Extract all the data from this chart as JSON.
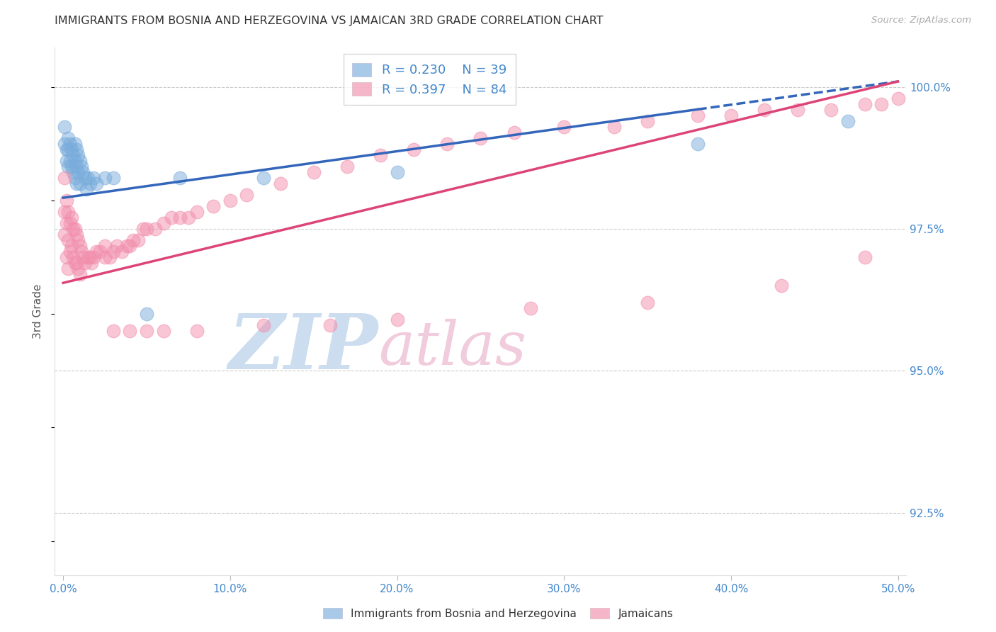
{
  "title": "IMMIGRANTS FROM BOSNIA AND HERZEGOVINA VS JAMAICAN 3RD GRADE CORRELATION CHART",
  "source": "Source: ZipAtlas.com",
  "ylabel": "3rd Grade",
  "xlim_min": -0.005,
  "xlim_max": 0.505,
  "ylim_min": 0.914,
  "ylim_max": 1.007,
  "xtick_vals": [
    0.0,
    0.1,
    0.2,
    0.3,
    0.4,
    0.5
  ],
  "xticklabels": [
    "0.0%",
    "10.0%",
    "20.0%",
    "30.0%",
    "40.0%",
    "50.0%"
  ],
  "ytick_vals": [
    0.925,
    0.95,
    0.975,
    1.0
  ],
  "yticklabels": [
    "92.5%",
    "95.0%",
    "97.5%",
    "100.0%"
  ],
  "blue_R": 0.23,
  "blue_N": 39,
  "pink_R": 0.397,
  "pink_N": 84,
  "blue_scatter_color": "#7AADDC",
  "pink_scatter_color": "#F28FAD",
  "blue_line_color": "#3366BB",
  "pink_line_color": "#DD4477",
  "blue_label": "Immigrants from Bosnia and Herzegovina",
  "pink_label": "Jamaicans",
  "axis_label_color": "#4488CC",
  "grid_color": "#CCCCCC",
  "blue_x": [
    0.001,
    0.001,
    0.002,
    0.002,
    0.003,
    0.003,
    0.003,
    0.004,
    0.004,
    0.005,
    0.005,
    0.006,
    0.006,
    0.007,
    0.007,
    0.007,
    0.008,
    0.008,
    0.008,
    0.009,
    0.009,
    0.01,
    0.01,
    0.011,
    0.012,
    0.013,
    0.014,
    0.015,
    0.016,
    0.018,
    0.02,
    0.025,
    0.03,
    0.05,
    0.07,
    0.12,
    0.2,
    0.38,
    0.47
  ],
  "blue_y": [
    0.993,
    0.99,
    0.989,
    0.987,
    0.991,
    0.989,
    0.986,
    0.99,
    0.987,
    0.989,
    0.986,
    0.988,
    0.985,
    0.99,
    0.987,
    0.984,
    0.989,
    0.986,
    0.983,
    0.988,
    0.985,
    0.987,
    0.983,
    0.986,
    0.985,
    0.984,
    0.982,
    0.984,
    0.983,
    0.984,
    0.983,
    0.984,
    0.984,
    0.96,
    0.984,
    0.984,
    0.985,
    0.99,
    0.994
  ],
  "pink_x": [
    0.001,
    0.001,
    0.001,
    0.002,
    0.002,
    0.002,
    0.003,
    0.003,
    0.003,
    0.004,
    0.004,
    0.005,
    0.005,
    0.006,
    0.006,
    0.007,
    0.007,
    0.008,
    0.008,
    0.009,
    0.009,
    0.01,
    0.01,
    0.011,
    0.012,
    0.013,
    0.015,
    0.016,
    0.017,
    0.018,
    0.02,
    0.022,
    0.025,
    0.025,
    0.028,
    0.03,
    0.032,
    0.035,
    0.038,
    0.04,
    0.042,
    0.045,
    0.048,
    0.05,
    0.055,
    0.06,
    0.065,
    0.07,
    0.075,
    0.08,
    0.09,
    0.1,
    0.11,
    0.13,
    0.15,
    0.17,
    0.19,
    0.21,
    0.23,
    0.25,
    0.27,
    0.3,
    0.33,
    0.35,
    0.38,
    0.4,
    0.42,
    0.44,
    0.46,
    0.48,
    0.49,
    0.5,
    0.48,
    0.43,
    0.35,
    0.28,
    0.2,
    0.16,
    0.12,
    0.08,
    0.06,
    0.05,
    0.04,
    0.03
  ],
  "pink_y": [
    0.984,
    0.978,
    0.974,
    0.98,
    0.976,
    0.97,
    0.978,
    0.973,
    0.968,
    0.976,
    0.971,
    0.977,
    0.972,
    0.975,
    0.97,
    0.975,
    0.969,
    0.974,
    0.969,
    0.973,
    0.968,
    0.972,
    0.967,
    0.971,
    0.97,
    0.969,
    0.97,
    0.97,
    0.969,
    0.97,
    0.971,
    0.971,
    0.972,
    0.97,
    0.97,
    0.971,
    0.972,
    0.971,
    0.972,
    0.972,
    0.973,
    0.973,
    0.975,
    0.975,
    0.975,
    0.976,
    0.977,
    0.977,
    0.977,
    0.978,
    0.979,
    0.98,
    0.981,
    0.983,
    0.985,
    0.986,
    0.988,
    0.989,
    0.99,
    0.991,
    0.992,
    0.993,
    0.993,
    0.994,
    0.995,
    0.995,
    0.996,
    0.996,
    0.996,
    0.997,
    0.997,
    0.998,
    0.97,
    0.965,
    0.962,
    0.961,
    0.959,
    0.958,
    0.958,
    0.957,
    0.957,
    0.957,
    0.957,
    0.957
  ]
}
